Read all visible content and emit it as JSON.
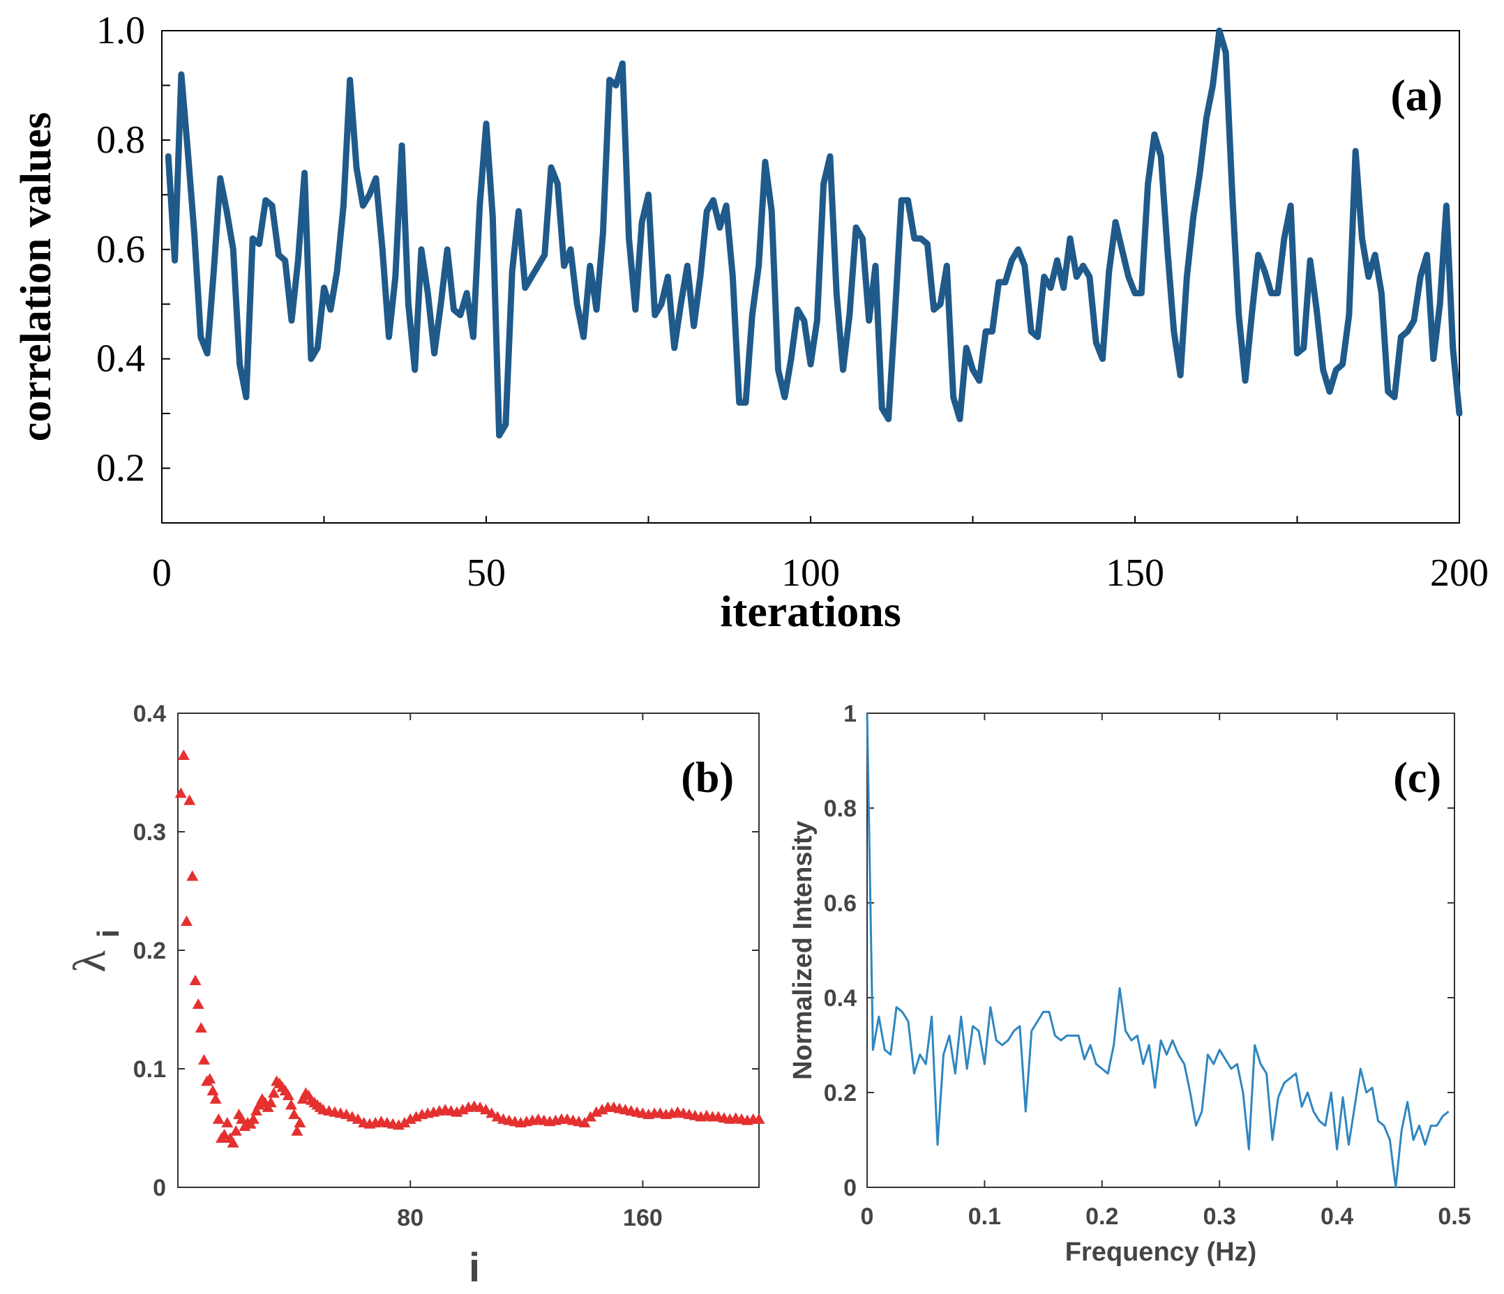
{
  "chart_data": [
    {
      "panel": "a",
      "type": "line",
      "panel_label": "(a)",
      "xlabel": "iterations",
      "ylabel": "correlation values",
      "xlim": [
        0,
        200
      ],
      "ylim": [
        0.1,
        1.0
      ],
      "xticks": [
        "0",
        "50",
        "100",
        "150",
        "200"
      ],
      "yticks": [
        "0.2",
        "0.4",
        "0.6",
        "0.8",
        "1.0"
      ],
      "color": "#1f5a8a",
      "grid": false,
      "x": [
        1,
        2,
        3,
        4,
        5,
        6,
        7,
        8,
        9,
        10,
        11,
        12,
        13,
        14,
        15,
        16,
        17,
        18,
        19,
        20,
        21,
        22,
        23,
        24,
        25,
        26,
        27,
        28,
        29,
        30,
        31,
        32,
        33,
        34,
        35,
        36,
        37,
        38,
        39,
        40,
        41,
        42,
        43,
        44,
        45,
        46,
        47,
        48,
        49,
        50,
        51,
        52,
        53,
        54,
        55,
        56,
        57,
        58,
        59,
        60,
        61,
        62,
        63,
        64,
        65,
        66,
        67,
        68,
        69,
        70,
        71,
        72,
        73,
        74,
        75,
        76,
        77,
        78,
        79,
        80,
        81,
        82,
        83,
        84,
        85,
        86,
        87,
        88,
        89,
        90,
        91,
        92,
        93,
        94,
        95,
        96,
        97,
        98,
        99,
        100,
        101,
        102,
        103,
        104,
        105,
        106,
        107,
        108,
        109,
        110,
        111,
        112,
        113,
        114,
        115,
        116,
        117,
        118,
        119,
        120,
        121,
        122,
        123,
        124,
        125,
        126,
        127,
        128,
        129,
        130,
        131,
        132,
        133,
        134,
        135,
        136,
        137,
        138,
        139,
        140,
        141,
        142,
        143,
        144,
        145,
        146,
        147,
        148,
        149,
        150,
        151,
        152,
        153,
        154,
        155,
        156,
        157,
        158,
        159,
        160,
        161,
        162,
        163,
        164,
        165,
        166,
        167,
        168,
        169,
        170,
        171,
        172,
        173,
        174,
        175,
        176,
        177,
        178,
        179,
        180,
        181,
        182,
        183,
        184,
        185,
        186,
        187,
        188,
        189,
        190,
        191,
        192,
        193,
        194,
        195,
        196,
        197,
        198,
        199,
        200
      ],
      "y": [
        0.77,
        0.58,
        0.92,
        0.78,
        0.63,
        0.44,
        0.41,
        0.56,
        0.73,
        0.67,
        0.6,
        0.39,
        0.33,
        0.62,
        0.61,
        0.69,
        0.68,
        0.59,
        0.58,
        0.47,
        0.58,
        0.74,
        0.4,
        0.42,
        0.53,
        0.49,
        0.56,
        0.68,
        0.91,
        0.75,
        0.68,
        0.7,
        0.73,
        0.6,
        0.44,
        0.55,
        0.79,
        0.5,
        0.38,
        0.6,
        0.52,
        0.41,
        0.5,
        0.6,
        0.49,
        0.48,
        0.52,
        0.44,
        0.68,
        0.83,
        0.66,
        0.26,
        0.28,
        0.56,
        0.67,
        0.53,
        0.55,
        0.57,
        0.59,
        0.75,
        0.72,
        0.57,
        0.6,
        0.5,
        0.44,
        0.57,
        0.49,
        0.63,
        0.91,
        0.9,
        0.94,
        0.62,
        0.49,
        0.65,
        0.7,
        0.48,
        0.5,
        0.55,
        0.42,
        0.5,
        0.57,
        0.46,
        0.55,
        0.67,
        0.69,
        0.64,
        0.68,
        0.55,
        0.32,
        0.32,
        0.48,
        0.57,
        0.76,
        0.67,
        0.38,
        0.33,
        0.4,
        0.49,
        0.47,
        0.39,
        0.47,
        0.72,
        0.77,
        0.52,
        0.38,
        0.48,
        0.64,
        0.62,
        0.47,
        0.57,
        0.31,
        0.29,
        0.48,
        0.69,
        0.69,
        0.62,
        0.62,
        0.61,
        0.49,
        0.5,
        0.57,
        0.33,
        0.29,
        0.42,
        0.38,
        0.36,
        0.45,
        0.45,
        0.54,
        0.54,
        0.58,
        0.6,
        0.57,
        0.45,
        0.44,
        0.55,
        0.53,
        0.58,
        0.53,
        0.62,
        0.55,
        0.57,
        0.55,
        0.43,
        0.4,
        0.56,
        0.65,
        0.6,
        0.55,
        0.52,
        0.52,
        0.72,
        0.81,
        0.77,
        0.6,
        0.45,
        0.37,
        0.55,
        0.66,
        0.74,
        0.84,
        0.9,
        1.0,
        0.96,
        0.7,
        0.48,
        0.36,
        0.48,
        0.59,
        0.56,
        0.52,
        0.52,
        0.62,
        0.68,
        0.41,
        0.42,
        0.58,
        0.49,
        0.38,
        0.34,
        0.38,
        0.39,
        0.48,
        0.78,
        0.62,
        0.55,
        0.59,
        0.52,
        0.34,
        0.33,
        0.44,
        0.45,
        0.47,
        0.55,
        0.59,
        0.4,
        0.5,
        0.68,
        0.42,
        0.3
      ]
    },
    {
      "panel": "b",
      "type": "scatter",
      "marker": "triangle",
      "panel_label": "(b)",
      "xlabel": "i",
      "ylabel": "λ",
      "ylabel_sub": "i",
      "xlim": [
        0,
        200
      ],
      "ylim": [
        0,
        0.4
      ],
      "xticks": [
        "80",
        "160"
      ],
      "yticks": [
        "0",
        "0.1",
        "0.2",
        "0.3",
        "0.4"
      ],
      "color": "#e53030",
      "x": [
        1,
        2,
        3,
        4,
        5,
        6,
        7,
        8,
        9,
        10,
        11,
        12,
        13,
        14,
        15,
        16,
        17,
        18,
        19,
        20,
        21,
        22,
        23,
        24,
        25,
        26,
        27,
        28,
        29,
        30,
        31,
        32,
        33,
        34,
        35,
        36,
        37,
        38,
        39,
        40,
        41,
        42,
        43,
        44,
        45,
        46,
        47,
        48,
        49,
        50,
        52,
        54,
        56,
        58,
        60,
        62,
        64,
        66,
        68,
        70,
        72,
        74,
        76,
        78,
        80,
        82,
        84,
        86,
        88,
        90,
        92,
        94,
        96,
        98,
        100,
        102,
        104,
        106,
        108,
        110,
        112,
        114,
        116,
        118,
        120,
        122,
        124,
        126,
        128,
        130,
        132,
        134,
        136,
        138,
        140,
        142,
        144,
        146,
        148,
        150,
        152,
        154,
        156,
        158,
        160,
        162,
        164,
        166,
        168,
        170,
        172,
        174,
        176,
        178,
        180,
        182,
        184,
        186,
        188,
        190,
        192,
        194,
        196,
        198,
        200
      ],
      "y": [
        0.333,
        0.365,
        0.225,
        0.327,
        0.263,
        0.175,
        0.155,
        0.135,
        0.108,
        0.09,
        0.092,
        0.082,
        0.075,
        0.058,
        0.042,
        0.045,
        0.055,
        0.042,
        0.038,
        0.048,
        0.062,
        0.058,
        0.052,
        0.055,
        0.054,
        0.058,
        0.065,
        0.07,
        0.075,
        0.072,
        0.068,
        0.072,
        0.08,
        0.09,
        0.088,
        0.085,
        0.082,
        0.078,
        0.07,
        0.062,
        0.048,
        0.055,
        0.075,
        0.08,
        0.078,
        0.074,
        0.072,
        0.07,
        0.068,
        0.066,
        0.065,
        0.064,
        0.063,
        0.062,
        0.06,
        0.058,
        0.055,
        0.054,
        0.055,
        0.056,
        0.055,
        0.054,
        0.053,
        0.055,
        0.058,
        0.06,
        0.062,
        0.063,
        0.064,
        0.065,
        0.066,
        0.065,
        0.064,
        0.066,
        0.068,
        0.069,
        0.068,
        0.066,
        0.063,
        0.06,
        0.058,
        0.057,
        0.056,
        0.055,
        0.056,
        0.057,
        0.058,
        0.057,
        0.056,
        0.057,
        0.058,
        0.058,
        0.057,
        0.056,
        0.055,
        0.06,
        0.064,
        0.066,
        0.068,
        0.068,
        0.067,
        0.066,
        0.065,
        0.064,
        0.063,
        0.062,
        0.063,
        0.063,
        0.062,
        0.063,
        0.064,
        0.063,
        0.062,
        0.061,
        0.06,
        0.061,
        0.06,
        0.06,
        0.059,
        0.058,
        0.059,
        0.058,
        0.057,
        0.058,
        0.058
      ]
    },
    {
      "panel": "c",
      "type": "line",
      "panel_label": "(c)",
      "xlabel": "Frequency (Hz)",
      "ylabel": "Normalized Intensity",
      "xlim": [
        0,
        0.5
      ],
      "ylim": [
        0,
        1
      ],
      "xticks": [
        "0",
        "0.1",
        "0.2",
        "0.3",
        "0.4",
        "0.5"
      ],
      "yticks": [
        "0",
        "0.2",
        "0.4",
        "0.6",
        "0.8",
        "1"
      ],
      "color": "#2e86c1",
      "x": [
        0,
        0.005,
        0.01,
        0.015,
        0.02,
        0.025,
        0.03,
        0.035,
        0.04,
        0.045,
        0.05,
        0.055,
        0.06,
        0.065,
        0.07,
        0.075,
        0.08,
        0.085,
        0.09,
        0.095,
        0.1,
        0.105,
        0.11,
        0.115,
        0.12,
        0.125,
        0.13,
        0.135,
        0.14,
        0.145,
        0.15,
        0.155,
        0.16,
        0.165,
        0.17,
        0.175,
        0.18,
        0.185,
        0.19,
        0.195,
        0.2,
        0.205,
        0.21,
        0.215,
        0.22,
        0.225,
        0.23,
        0.235,
        0.24,
        0.245,
        0.25,
        0.255,
        0.26,
        0.265,
        0.27,
        0.275,
        0.28,
        0.285,
        0.29,
        0.295,
        0.3,
        0.305,
        0.31,
        0.315,
        0.32,
        0.325,
        0.33,
        0.335,
        0.34,
        0.345,
        0.35,
        0.355,
        0.36,
        0.365,
        0.37,
        0.375,
        0.38,
        0.385,
        0.39,
        0.395,
        0.4,
        0.405,
        0.41,
        0.415,
        0.42,
        0.425,
        0.43,
        0.435,
        0.44,
        0.445,
        0.45,
        0.455,
        0.46,
        0.465,
        0.47,
        0.475,
        0.48,
        0.485,
        0.49,
        0.495
      ],
      "y": [
        1.0,
        0.29,
        0.36,
        0.29,
        0.28,
        0.38,
        0.37,
        0.35,
        0.24,
        0.28,
        0.26,
        0.36,
        0.09,
        0.28,
        0.32,
        0.24,
        0.36,
        0.25,
        0.34,
        0.33,
        0.26,
        0.38,
        0.31,
        0.3,
        0.31,
        0.33,
        0.34,
        0.16,
        0.33,
        0.35,
        0.37,
        0.37,
        0.32,
        0.31,
        0.32,
        0.32,
        0.32,
        0.27,
        0.3,
        0.26,
        0.25,
        0.24,
        0.3,
        0.42,
        0.33,
        0.31,
        0.32,
        0.26,
        0.3,
        0.21,
        0.31,
        0.28,
        0.31,
        0.28,
        0.26,
        0.2,
        0.13,
        0.16,
        0.28,
        0.26,
        0.29,
        0.27,
        0.25,
        0.26,
        0.2,
        0.08,
        0.3,
        0.26,
        0.24,
        0.1,
        0.19,
        0.22,
        0.23,
        0.24,
        0.17,
        0.2,
        0.16,
        0.14,
        0.13,
        0.2,
        0.08,
        0.19,
        0.09,
        0.17,
        0.25,
        0.2,
        0.21,
        0.14,
        0.13,
        0.1,
        0.0,
        0.12,
        0.18,
        0.1,
        0.13,
        0.09,
        0.13,
        0.13,
        0.15,
        0.16
      ]
    }
  ]
}
